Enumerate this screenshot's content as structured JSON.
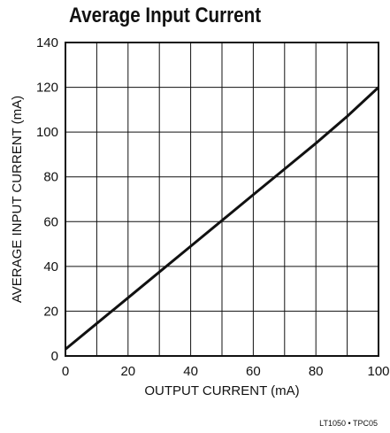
{
  "chart_data": {
    "type": "line",
    "title": "Average Input Current",
    "xlabel": "OUTPUT CURRENT (mA)",
    "ylabel": "AVERAGE INPUT CURRENT (mA)",
    "xlim": [
      0,
      100
    ],
    "ylim": [
      0,
      140
    ],
    "x_ticks": [
      "0",
      "20",
      "40",
      "60",
      "80",
      "100"
    ],
    "y_ticks": [
      "0",
      "20",
      "40",
      "60",
      "80",
      "100",
      "120",
      "140"
    ],
    "grid": true,
    "series": [
      {
        "x": [
          0,
          10,
          20,
          30,
          40,
          50,
          60,
          70,
          80,
          90,
          100
        ],
        "y": [
          3,
          14.5,
          26,
          37.5,
          49,
          60.5,
          72,
          83.5,
          95,
          107,
          120
        ]
      }
    ],
    "line_color": "#111111"
  },
  "footer_note": "LT1050 • TPC05"
}
